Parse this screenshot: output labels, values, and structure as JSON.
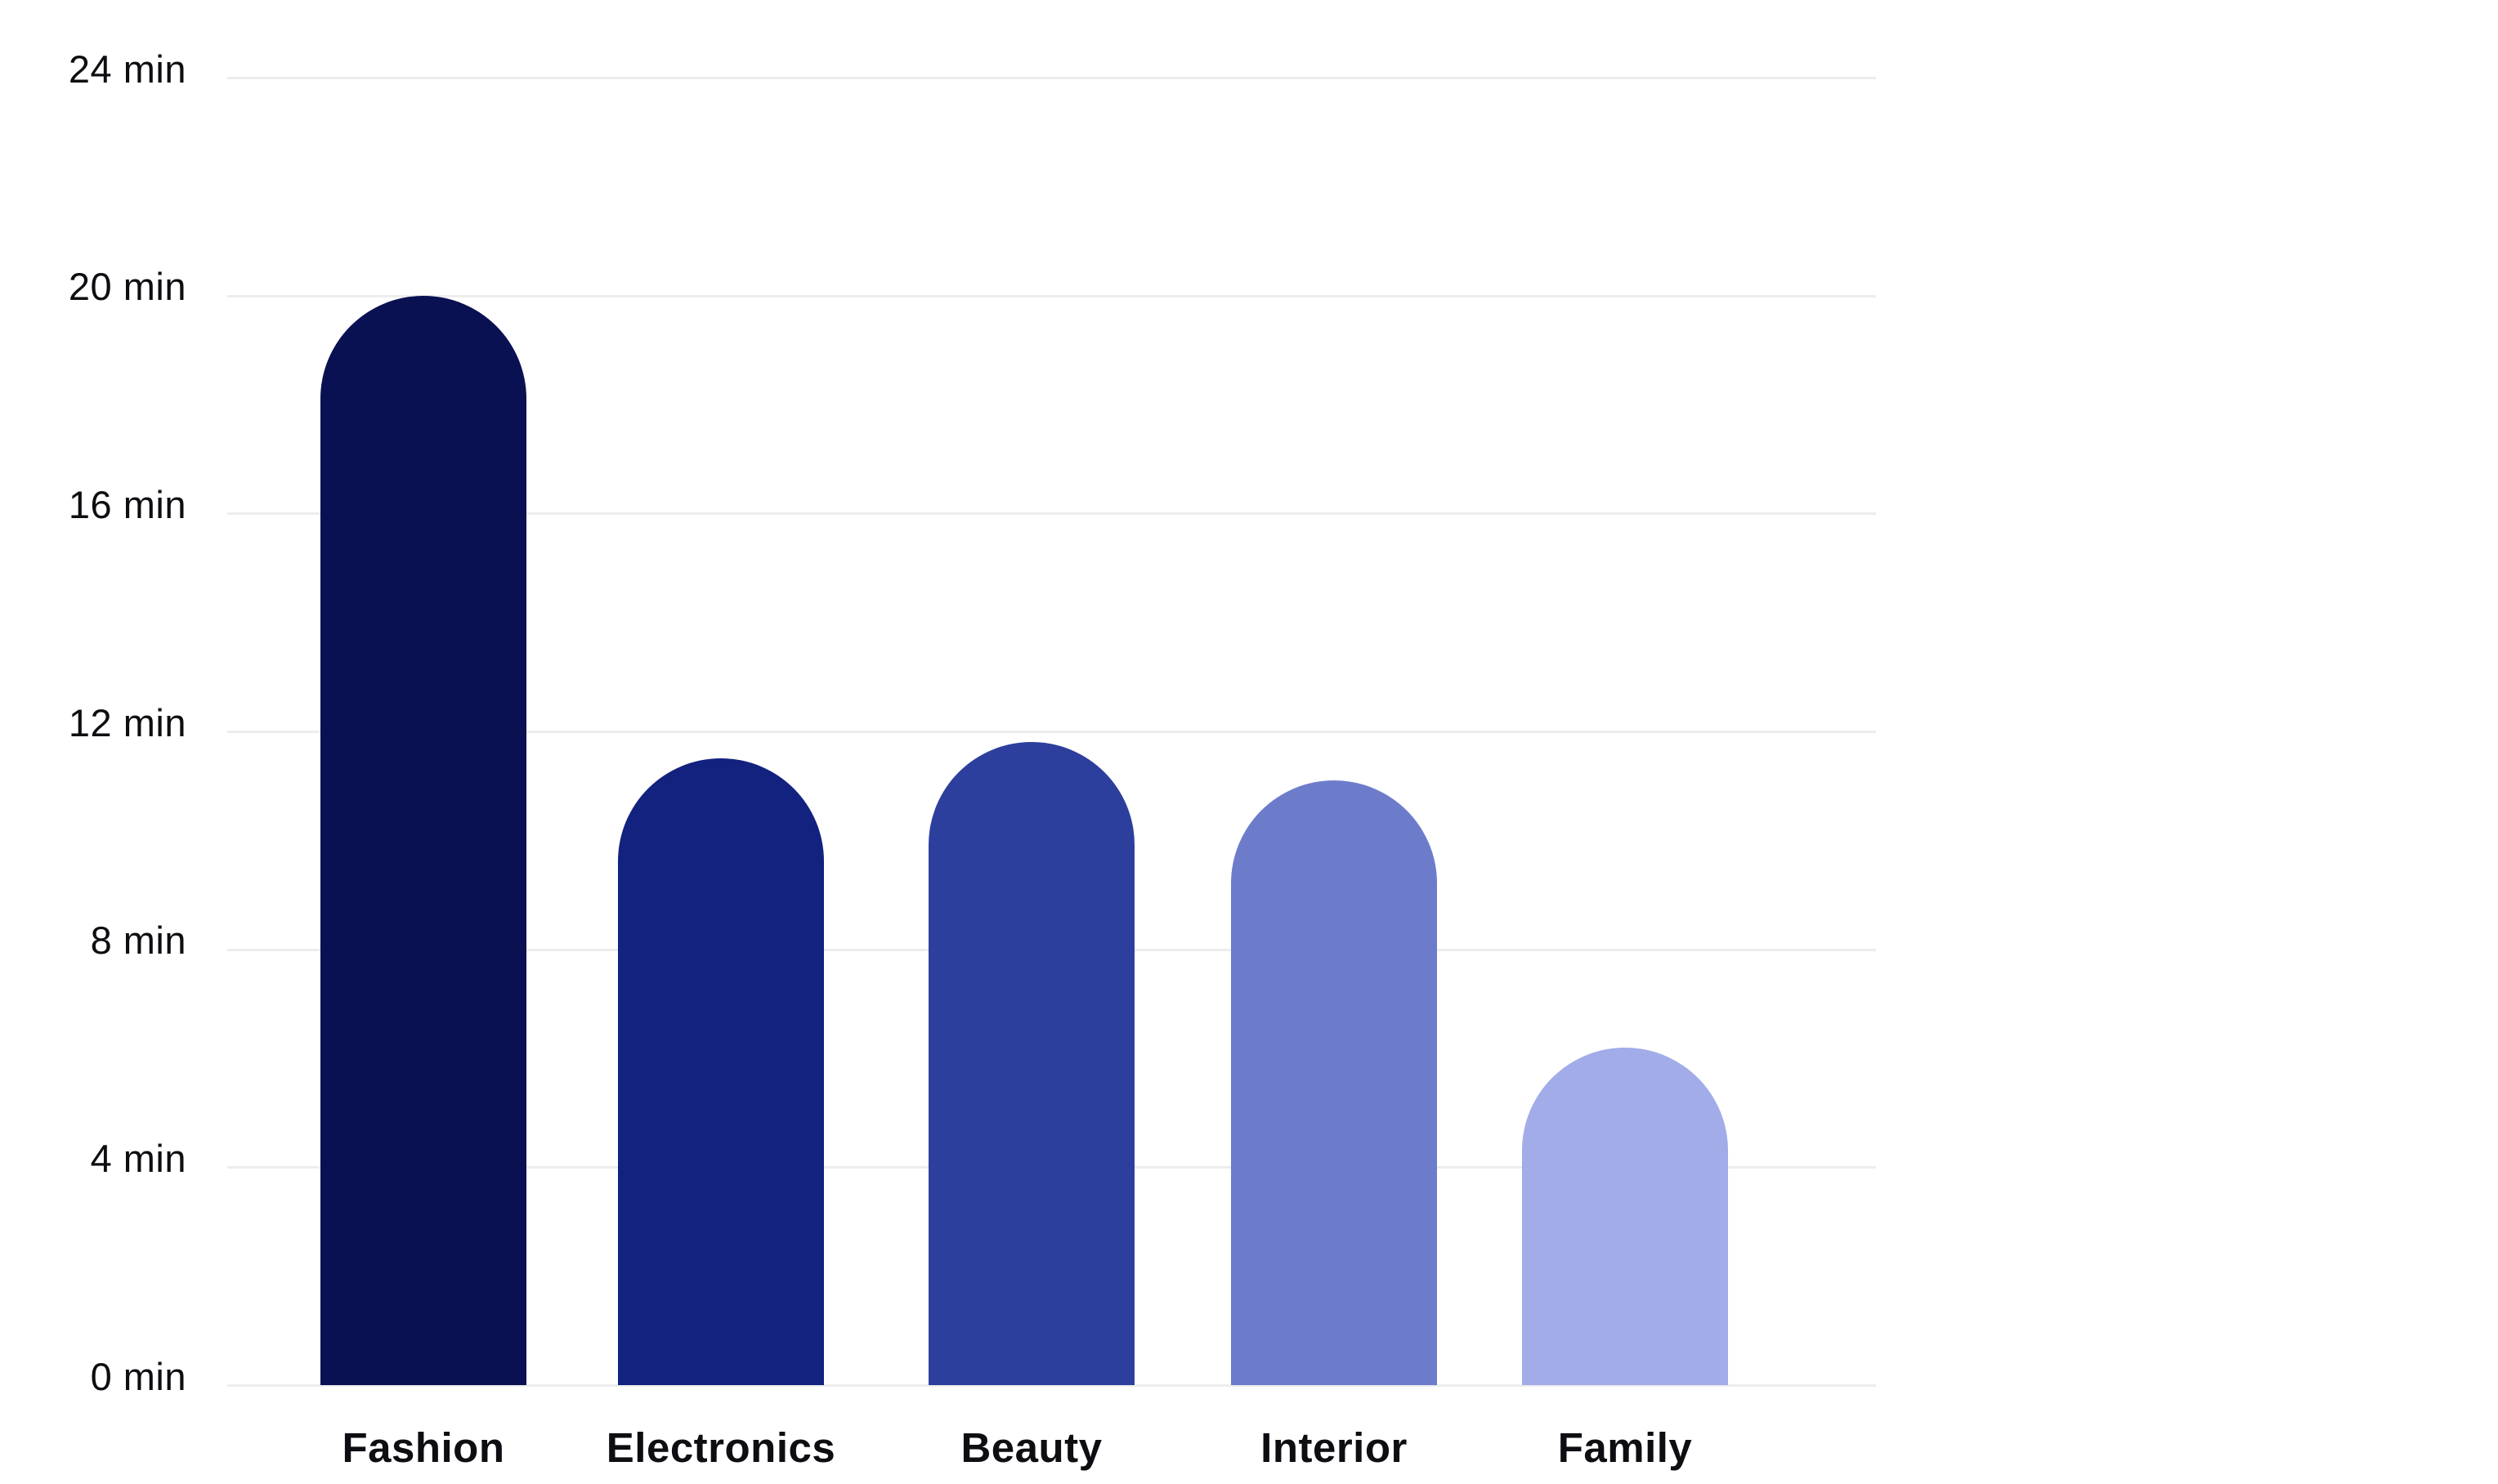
{
  "chart": {
    "title": "",
    "unit_suffix": " min"
  },
  "chart_data": {
    "type": "bar",
    "categories": [
      "Fashion",
      "Electronics",
      "Beauty",
      "Interior",
      "Family"
    ],
    "values": [
      20,
      11.5,
      11.8,
      11.1,
      6.2
    ],
    "bar_colors": [
      "#0a1152",
      "#13227f",
      "#2d3f9d",
      "#6d7cca",
      "#a1ace8"
    ],
    "title": "",
    "xlabel": "",
    "ylabel": "",
    "y_tick_values": [
      0,
      4,
      8,
      12,
      16,
      20,
      24
    ],
    "y_tick_labels": [
      "0 min",
      "4 min",
      "8 min",
      "12 min",
      "16 min",
      "20 min",
      "24 min"
    ],
    "ylim": [
      0,
      24
    ],
    "grid": "horizontal",
    "gridline_color": "#ededed",
    "axis_text_color": "#0d0d12",
    "legend": "none",
    "background_color": "#ffffff"
  }
}
